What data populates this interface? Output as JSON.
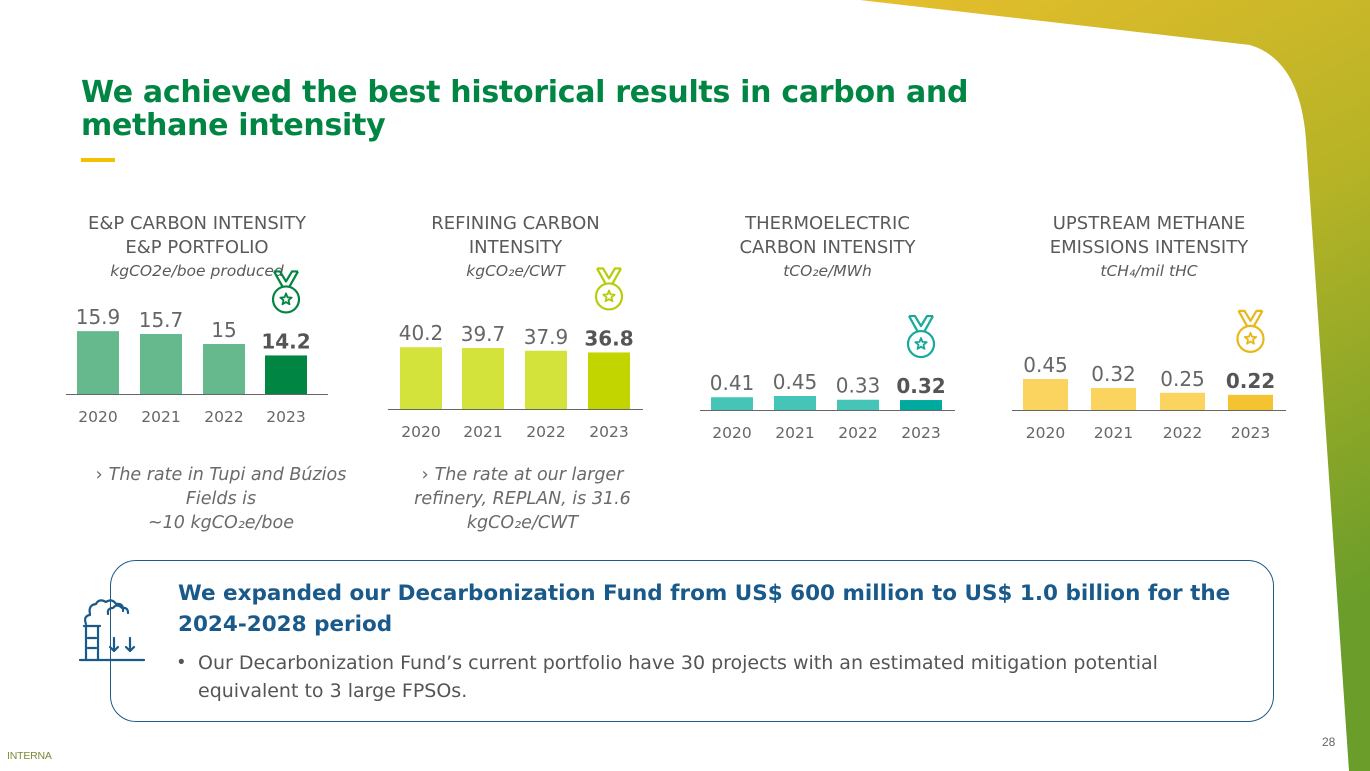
{
  "title": "We achieved the best historical results in carbon and methane intensity",
  "colors": {
    "brand_green": "#008542",
    "accent_yellow": "#f5c000",
    "fund_blue": "#1a5a8a"
  },
  "chart_data": [
    {
      "type": "bar",
      "title_lines": [
        "E&P CARBON INTENSITY",
        "E&P PORTFOLIO"
      ],
      "unit": "kgCO2e/boe produced",
      "categories": [
        "2020",
        "2021",
        "2022",
        "2023"
      ],
      "values": [
        15.9,
        15.7,
        15,
        14.2
      ],
      "value_labels": [
        "15.9",
        "15.7",
        "15",
        "14.2"
      ],
      "bar_colors": [
        "#66b98c",
        "#66b98c",
        "#66b98c",
        "#008542"
      ],
      "highlight_index": 3,
      "medal_color": "#008542",
      "ylim": [
        11.5,
        16.4
      ]
    },
    {
      "type": "bar",
      "title_lines": [
        "REFINING CARBON",
        "INTENSITY"
      ],
      "unit": "kgCO₂e/CWT",
      "categories": [
        "2020",
        "2021",
        "2022",
        "2023"
      ],
      "values": [
        40.2,
        39.7,
        37.9,
        36.8
      ],
      "value_labels": [
        "40.2",
        "39.7",
        "37.9",
        "36.8"
      ],
      "bar_colors": [
        "#d3e33c",
        "#d3e33c",
        "#d3e33c",
        "#c3d500"
      ],
      "highlight_index": 3,
      "medal_color": "#b7cc0a",
      "ylim": [
        0,
        41
      ]
    },
    {
      "type": "bar",
      "title_lines": [
        "THERMOELECTRIC",
        "CARBON INTENSITY"
      ],
      "unit": "tCO₂e/MWh",
      "categories": [
        "2020",
        "2021",
        "2022",
        "2023"
      ],
      "values": [
        0.41,
        0.45,
        0.33,
        0.32
      ],
      "value_labels": [
        "0.41",
        "0.45",
        "0.33",
        "0.32"
      ],
      "bar_colors": [
        "#45c4b8",
        "#45c4b8",
        "#45c4b8",
        "#00aa9e"
      ],
      "highlight_index": 3,
      "medal_color": "#17a99c",
      "ylim": [
        0,
        0.9
      ]
    },
    {
      "type": "bar",
      "title_lines": [
        "UPSTREAM METHANE",
        "EMISSIONS INTENSITY"
      ],
      "unit": "tCH₄/mil tHC",
      "categories": [
        "2020",
        "2021",
        "2022",
        "2023"
      ],
      "values": [
        0.45,
        0.32,
        0.25,
        0.22
      ],
      "value_labels": [
        "0.45",
        "0.32",
        "0.25",
        "0.22"
      ],
      "bar_colors": [
        "#fbd460",
        "#fbd460",
        "#fbd460",
        "#f5c230"
      ],
      "highlight_index": 3,
      "medal_color": "#e8b81a",
      "ylim": [
        0,
        0.45
      ]
    }
  ],
  "notes": {
    "ep": {
      "line1": "The rate in Tupi and Búzios",
      "line2": "Fields is",
      "line3": "~10  kgCO₂e/boe"
    },
    "refining": {
      "line1": "The rate at our larger",
      "line2": "refinery, REPLAN, is 31.6",
      "line3": "kgCO₂e/CWT"
    }
  },
  "fund": {
    "title": "We expanded our Decarbonization Fund from US$ 600 million to US$ 1.0 billion for the 2024-2028 period",
    "bullet": "Our Decarbonization Fund’s current portfolio have 30 projects with an estimated mitigation potential equivalent to 3 large FPSOs.",
    "icon": "factory-emissions-icon"
  },
  "page_number": "28",
  "classification": "INTERNA"
}
